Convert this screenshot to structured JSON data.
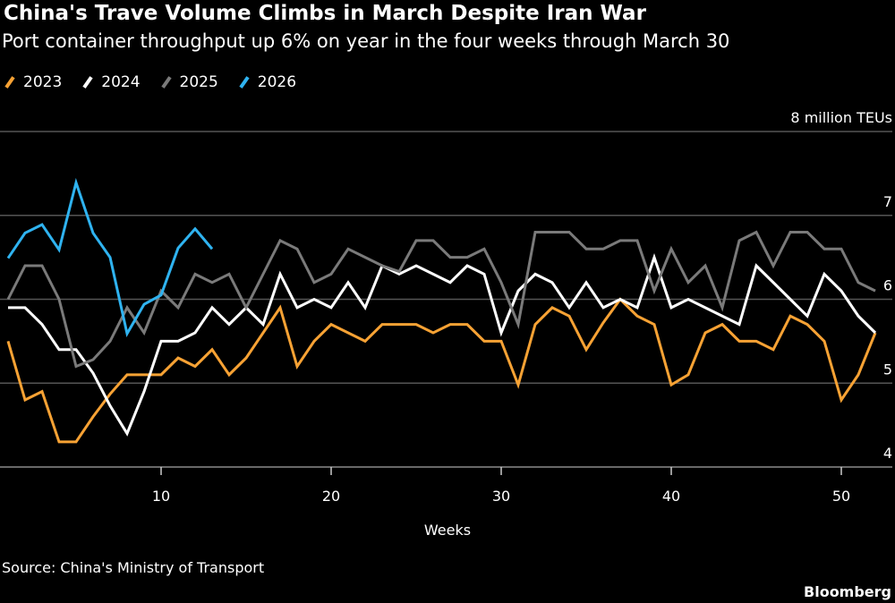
{
  "title": "China's Trave Volume Climbs in March Despite Iran War",
  "subtitle": "Port container throughput up 6% on year in the four weeks through March 30",
  "source": "Source: China's Ministry of Transport",
  "logo": "Bloomberg",
  "chart_data": {
    "type": "line",
    "xlabel": "Weeks",
    "ylabel": "",
    "y_unit_label": "8 million TEUs",
    "ylim": [
      4,
      8
    ],
    "xlim": [
      1,
      52
    ],
    "yticks": [
      4,
      5,
      6,
      7,
      8
    ],
    "xticks": [
      10,
      20,
      30,
      40,
      50
    ],
    "grid": true,
    "legend_placement": "top-left",
    "series": [
      {
        "name": "2023",
        "color": "#f7a234",
        "values": [
          5.5,
          4.8,
          4.9,
          4.3,
          4.3,
          4.6,
          4.87,
          5.1,
          5.1,
          5.1,
          5.3,
          5.2,
          5.4,
          5.1,
          5.3,
          5.6,
          5.9,
          5.2,
          5.5,
          5.7,
          5.6,
          5.5,
          5.7,
          5.7,
          5.7,
          5.6,
          5.7,
          5.7,
          5.5,
          5.5,
          4.98,
          5.7,
          5.9,
          5.8,
          5.4,
          5.72,
          6.0,
          5.8,
          5.7,
          4.98,
          5.1,
          5.6,
          5.7,
          5.5,
          5.5,
          5.4,
          5.8,
          5.7,
          5.5,
          4.8,
          5.1,
          5.6
        ]
      },
      {
        "name": "2024",
        "color": "#ffffff",
        "values": [
          5.9,
          5.9,
          5.7,
          5.4,
          5.4,
          5.12,
          4.73,
          4.4,
          4.9,
          5.5,
          5.5,
          5.6,
          5.9,
          5.7,
          5.9,
          5.7,
          6.3,
          5.9,
          6.0,
          5.9,
          6.2,
          5.9,
          6.4,
          6.3,
          6.4,
          6.3,
          6.2,
          6.4,
          6.3,
          5.6,
          6.1,
          6.3,
          6.2,
          5.9,
          6.2,
          5.9,
          6.0,
          5.9,
          6.5,
          5.9,
          6.0,
          5.9,
          5.8,
          5.7,
          6.4,
          6.2,
          6.0,
          5.8,
          6.3,
          6.1,
          5.8,
          5.6
        ]
      },
      {
        "name": "2025",
        "color": "#7a7a7a",
        "values": [
          6.0,
          6.4,
          6.4,
          6.0,
          5.2,
          5.28,
          5.5,
          5.9,
          5.6,
          6.1,
          5.9,
          6.3,
          6.2,
          6.3,
          5.9,
          6.3,
          6.7,
          6.6,
          6.2,
          6.3,
          6.6,
          6.5,
          6.4,
          6.33,
          6.7,
          6.7,
          6.5,
          6.5,
          6.6,
          6.2,
          5.7,
          6.8,
          6.8,
          6.8,
          6.6,
          6.6,
          6.7,
          6.7,
          6.1,
          6.6,
          6.2,
          6.4,
          5.9,
          6.7,
          6.8,
          6.4,
          6.8,
          6.8,
          6.6,
          6.6,
          6.2,
          6.1
        ]
      },
      {
        "name": "2026",
        "color": "#2fb3f0",
        "values": [
          6.49,
          6.79,
          6.89,
          6.59,
          7.39,
          6.79,
          6.5,
          5.59,
          5.94,
          6.05,
          6.61,
          6.84,
          6.6
        ]
      }
    ]
  }
}
